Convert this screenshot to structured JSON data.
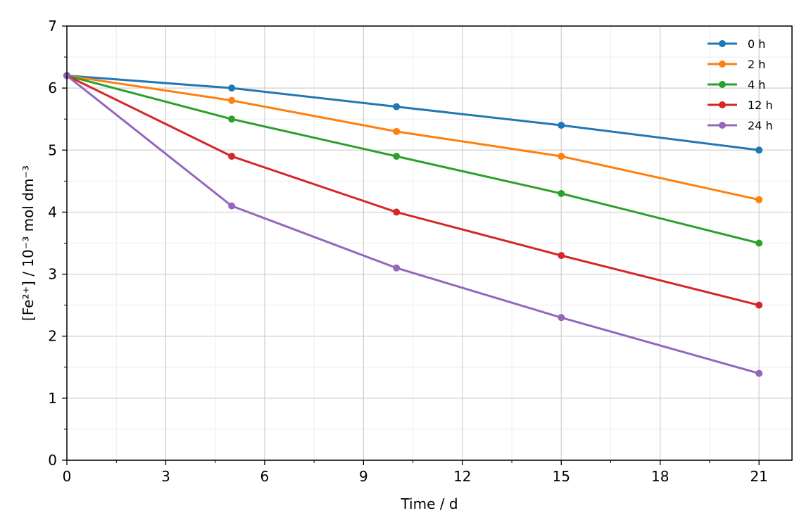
{
  "chart_data": {
    "type": "line",
    "title": "",
    "xlabel": "Time / d",
    "ylabel": "[Fe²⁺] / 10⁻³ mol dm⁻³",
    "xlim": [
      0,
      22
    ],
    "ylim": [
      0,
      7
    ],
    "xticks": [
      0,
      3,
      6,
      9,
      12,
      15,
      18,
      21
    ],
    "yticks": [
      0,
      1,
      2,
      3,
      4,
      5,
      6,
      7
    ],
    "grid": true,
    "legend_position": "top-right",
    "x": [
      0,
      5,
      10,
      15,
      21
    ],
    "series": [
      {
        "name": "0 h",
        "color": "#1f77b4",
        "values": [
          6.2,
          6.0,
          5.7,
          5.4,
          5.0
        ]
      },
      {
        "name": "2 h",
        "color": "#ff7f0e",
        "values": [
          6.2,
          5.8,
          5.3,
          4.9,
          4.2
        ]
      },
      {
        "name": "4 h",
        "color": "#2ca02c",
        "values": [
          6.2,
          5.5,
          4.9,
          4.3,
          3.5
        ]
      },
      {
        "name": "12 h",
        "color": "#d62728",
        "values": [
          6.2,
          4.9,
          4.0,
          3.3,
          2.5
        ]
      },
      {
        "name": "24 h",
        "color": "#9467bd",
        "values": [
          6.2,
          4.1,
          3.1,
          2.3,
          1.4
        ]
      }
    ]
  }
}
